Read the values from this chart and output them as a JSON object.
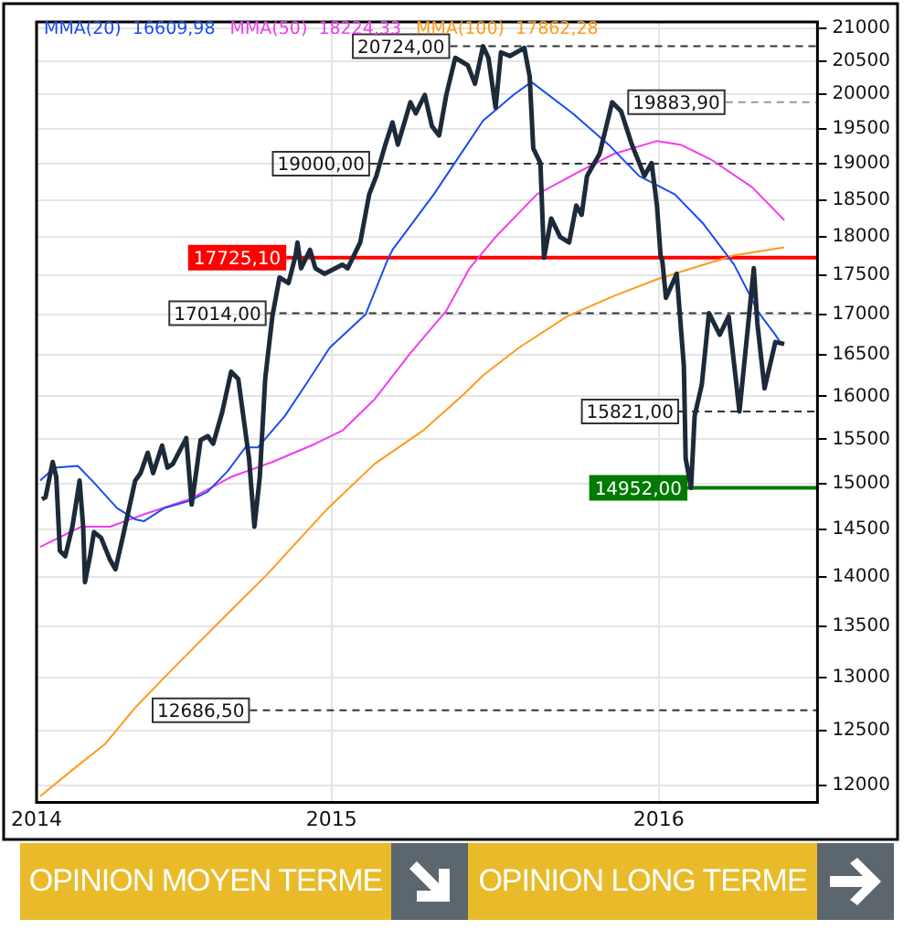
{
  "chart_data": {
    "type": "line",
    "log": "y",
    "grid": true,
    "legend": "top left",
    "marker": "none",
    "line_style": "solid",
    "xlim": [
      "2014-02-06",
      "2016-06-26"
    ],
    "xticks": [
      {
        "value": "2014-02-06",
        "label": "2014"
      },
      "2015",
      "2016"
    ],
    "ylim": [
      11850,
      21100
    ],
    "yticks": [
      12000,
      12500,
      13000,
      13500,
      14000,
      14500,
      15000,
      15500,
      16000,
      16500,
      17000,
      17500,
      18000,
      18500,
      19000,
      19500,
      20000,
      20500,
      21000
    ],
    "series": [
      {
        "color": "#1c2a3a",
        "x": [
          "2014-02-12",
          "2014-02-16",
          "2014-02-24",
          "2014-02-28",
          "2014-03-04",
          "2014-03-10",
          "2014-03-18",
          "2014-03-26",
          "2014-03-30",
          "2014-04-01",
          "2014-04-07",
          "2014-04-11",
          "2014-04-19",
          "2014-04-29",
          "2014-05-05",
          "2014-05-13",
          "2014-05-27",
          "2014-06-02",
          "2014-06-10",
          "2014-06-16",
          "2014-06-26",
          "2014-07-02",
          "2014-07-08",
          "2014-07-23",
          "2014-07-29",
          "2014-08-08",
          "2014-08-16",
          "2014-08-22",
          "2014-09-01",
          "2014-09-11",
          "2014-09-19",
          "2014-10-01",
          "2014-10-07",
          "2014-10-13",
          "2014-10-19",
          "2014-10-27",
          "2014-11-04",
          "2014-11-14",
          "2014-11-22",
          "2014-11-24",
          "2014-11-28",
          "2014-12-08",
          "2014-12-14",
          "2014-12-24",
          "2015-01-13",
          "2015-01-19",
          "2015-02-02",
          "2015-02-12",
          "2015-02-20",
          "2015-03-02",
          "2015-03-10",
          "2015-03-16",
          "2015-03-30",
          "2015-04-05",
          "2015-04-15",
          "2015-04-23",
          "2015-05-01",
          "2015-05-09",
          "2015-05-19",
          "2015-06-02",
          "2015-06-10",
          "2015-06-19",
          "2015-06-25",
          "2015-07-03",
          "2015-07-09",
          "2015-07-19",
          "2015-08-04",
          "2015-08-10",
          "2015-08-14",
          "2015-08-22",
          "2015-08-26",
          "2015-09-03",
          "2015-09-13",
          "2015-09-23",
          "2015-10-01",
          "2015-10-07",
          "2015-10-13",
          "2015-10-27",
          "2015-11-10",
          "2015-11-20",
          "2015-12-02",
          "2015-12-16",
          "2015-12-24",
          "2015-12-30",
          "2016-01-03",
          "2016-01-05",
          "2016-01-09",
          "2016-01-21",
          "2016-01-29",
          "2016-01-31",
          "2016-02-06",
          "2016-02-10",
          "2016-02-18",
          "2016-02-26",
          "2016-03-09",
          "2016-03-19",
          "2016-03-31",
          "2016-04-16",
          "2016-04-20",
          "2016-04-28",
          "2016-05-10",
          "2016-05-20"
        ],
        "values": [
          14830,
          14850,
          15241,
          15074,
          14274,
          14216,
          14530,
          15033,
          14530,
          13946,
          14234,
          14470,
          14411,
          14177,
          14080,
          14411,
          15033,
          15116,
          15345,
          15116,
          15428,
          15178,
          15219,
          15513,
          14769,
          15491,
          15534,
          15449,
          15811,
          16293,
          16205,
          15282,
          14530,
          15074,
          16205,
          16974,
          17468,
          17397,
          17757,
          17926,
          17588,
          17829,
          17588,
          17516,
          17635,
          17588,
          17926,
          18574,
          18830,
          19271,
          19589,
          19271,
          19884,
          19722,
          19993,
          19535,
          19402,
          19993,
          20548,
          20436,
          20158,
          20724,
          20548,
          19803,
          20631,
          20576,
          20700,
          20268,
          19218,
          19010,
          17725,
          18247,
          18000,
          17926,
          18423,
          18297,
          18830,
          19140,
          19884,
          19750,
          19271,
          18830,
          19010,
          18423,
          17757,
          17683,
          17208,
          17516,
          16360,
          15282,
          14952,
          15769,
          16139,
          17014,
          16744,
          16974,
          15821,
          17588,
          16882,
          16094,
          16654,
          16631
        ]
      },
      {
        "name": "MMA(20)  16609,98",
        "color": "#1a4cf0",
        "x": [
          "2014-02-10",
          "2014-02-26",
          "2014-03-24",
          "2014-04-09",
          "2014-05-07",
          "2014-05-27",
          "2014-06-06",
          "2014-06-28",
          "2014-07-27",
          "2014-08-16",
          "2014-09-07",
          "2014-09-27",
          "2014-10-11",
          "2014-11-10",
          "2014-12-06",
          "2014-12-30",
          "2015-02-08",
          "2015-03-04",
          "2015-03-10",
          "2015-04-25",
          "2015-06-19",
          "2015-07-23",
          "2015-08-12",
          "2015-09-27",
          "2015-11-06",
          "2015-12-10",
          "2016-01-19",
          "2016-02-20",
          "2016-03-25",
          "2016-04-10",
          "2016-04-20",
          "2016-05-10",
          "2016-05-18"
        ],
        "values": [
          15033,
          15178,
          15198,
          15033,
          14729,
          14609,
          14589,
          14729,
          14811,
          14911,
          15137,
          15408,
          15408,
          15769,
          16183,
          16585,
          16998,
          17683,
          17829,
          18574,
          19615,
          19993,
          20185,
          19722,
          19271,
          18830,
          18574,
          18172,
          17635,
          17278,
          17044,
          16744,
          16610
        ]
      },
      {
        "name": "MMA(50)  18224,33",
        "color": "#f03cf0",
        "x": [
          "2014-02-10",
          "2014-03-28",
          "2014-04-29",
          "2014-06-08",
          "2014-07-27",
          "2014-09-11",
          "2014-10-27",
          "2014-12-14",
          "2015-01-13",
          "2015-02-18",
          "2015-03-30",
          "2015-05-09",
          "2015-06-04",
          "2015-07-03",
          "2015-08-18",
          "2015-10-03",
          "2015-11-12",
          "2015-12-30",
          "2016-01-25",
          "2016-02-28",
          "2016-04-14",
          "2016-05-20"
        ],
        "values": [
          14313,
          14530,
          14530,
          14670,
          14830,
          15074,
          15241,
          15449,
          15599,
          15964,
          16519,
          17044,
          17588,
          18000,
          18574,
          18880,
          19140,
          19323,
          19271,
          19062,
          18675,
          18224
        ]
      },
      {
        "name": "MMA(100)  17862,28",
        "color": "#ff9a1a",
        "x": [
          "2014-02-10",
          "2014-03-20",
          "2014-04-23",
          "2014-05-27",
          "2014-07-06",
          "2014-08-26",
          "2014-10-21",
          "2014-12-26",
          "2015-02-18",
          "2015-04-13",
          "2015-05-29",
          "2015-06-19",
          "2015-07-29",
          "2015-09-21",
          "2015-11-12",
          "2015-12-30",
          "2016-01-31",
          "2016-03-25",
          "2016-05-20"
        ],
        "values": [
          11905,
          12152,
          12370,
          12711,
          13063,
          13516,
          14024,
          14709,
          15219,
          15599,
          16029,
          16249,
          16585,
          16974,
          17232,
          17444,
          17563,
          17757,
          17862
        ]
      }
    ],
    "ref_lines": [
      {
        "axis": "y",
        "value": 20724,
        "label": "20724,00",
        "line_style": "dashed",
        "color": "#333333"
      },
      {
        "axis": "y",
        "value": 19883.9,
        "label": "19883,90",
        "line_style": "dashed",
        "color": "#999999"
      },
      {
        "axis": "y",
        "value": 19000,
        "label": "19000,00",
        "line_style": "dashed",
        "color": "#333333"
      },
      {
        "axis": "y",
        "value": 17725.1,
        "label": "17725,10",
        "line_style": "solid",
        "color": "#ff0000"
      },
      {
        "axis": "y",
        "value": 17014,
        "label": "17014,00",
        "line_style": "dashed",
        "color": "#333333"
      },
      {
        "axis": "y",
        "value": 15821,
        "label": "15821,00",
        "line_style": "dashed",
        "color": "#333333"
      },
      {
        "axis": "y",
        "value": 14952,
        "label": "14952,00",
        "line_style": "solid",
        "color": "#007a00"
      },
      {
        "axis": "y",
        "value": 12686.5,
        "label": "12686,50",
        "line_style": "dashed",
        "color": "#333333"
      }
    ],
    "annotations": [
      "OPINION MOYEN TERME",
      "OPINION LONG TERME"
    ]
  }
}
